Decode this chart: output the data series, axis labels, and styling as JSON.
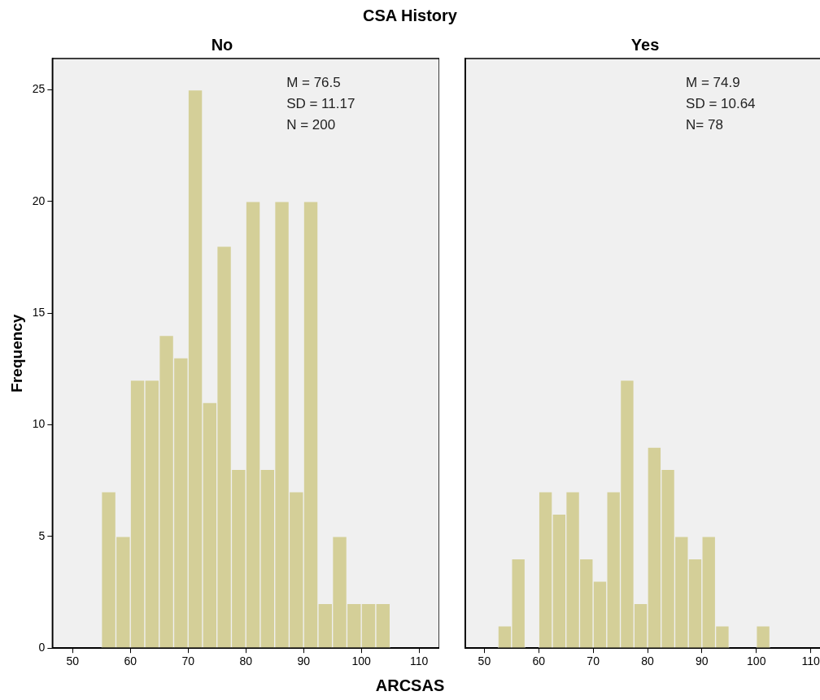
{
  "chart_data": [
    {
      "type": "histogram",
      "title": "CSA History",
      "subtitle": "No",
      "xlabel": "ARCSAS",
      "ylabel": "Frequency",
      "bins": [
        55,
        57.5,
        60,
        62.5,
        65,
        67.5,
        70,
        72.5,
        75,
        77.5,
        80,
        82.5,
        85,
        87.5,
        90,
        92.5,
        95,
        97.5,
        100,
        102.5,
        105
      ],
      "values": [
        7,
        5,
        12,
        12,
        14,
        13,
        25,
        11,
        18,
        8,
        20,
        8,
        20,
        7,
        20,
        2,
        5,
        2,
        2,
        2
      ],
      "color": "#d4cf98",
      "xlim": [
        46.5,
        113.5
      ],
      "xticks": [
        50,
        60,
        70,
        80,
        90,
        100,
        110
      ],
      "ylim": [
        0,
        26.4
      ],
      "yticks": [
        0,
        5,
        10,
        15,
        20,
        25
      ],
      "grid": false,
      "annotations": [
        "M = 76.5",
        "SD = 11.17",
        "N = 200"
      ]
    },
    {
      "type": "histogram",
      "subtitle": "Yes",
      "bins": [
        52.5,
        55,
        57.5,
        60,
        62.5,
        65,
        67.5,
        70,
        72.5,
        75,
        77.5,
        80,
        82.5,
        85,
        87.5,
        90,
        92.5,
        95,
        97.5,
        100,
        102.5
      ],
      "values": [
        1,
        4,
        0,
        7,
        6,
        7,
        4,
        3,
        7,
        12,
        2,
        9,
        8,
        5,
        4,
        5,
        1,
        0,
        0,
        1
      ],
      "color": "#d4cf98",
      "xlim": [
        46.5,
        113.5
      ],
      "xticks": [
        50,
        60,
        70,
        80,
        90,
        100,
        110
      ],
      "ylim": [
        0,
        26.4
      ],
      "grid": false,
      "tick_labels": "x",
      "annotations": [
        "M = 74.9",
        "SD = 10.64",
        "N= 78"
      ]
    }
  ]
}
